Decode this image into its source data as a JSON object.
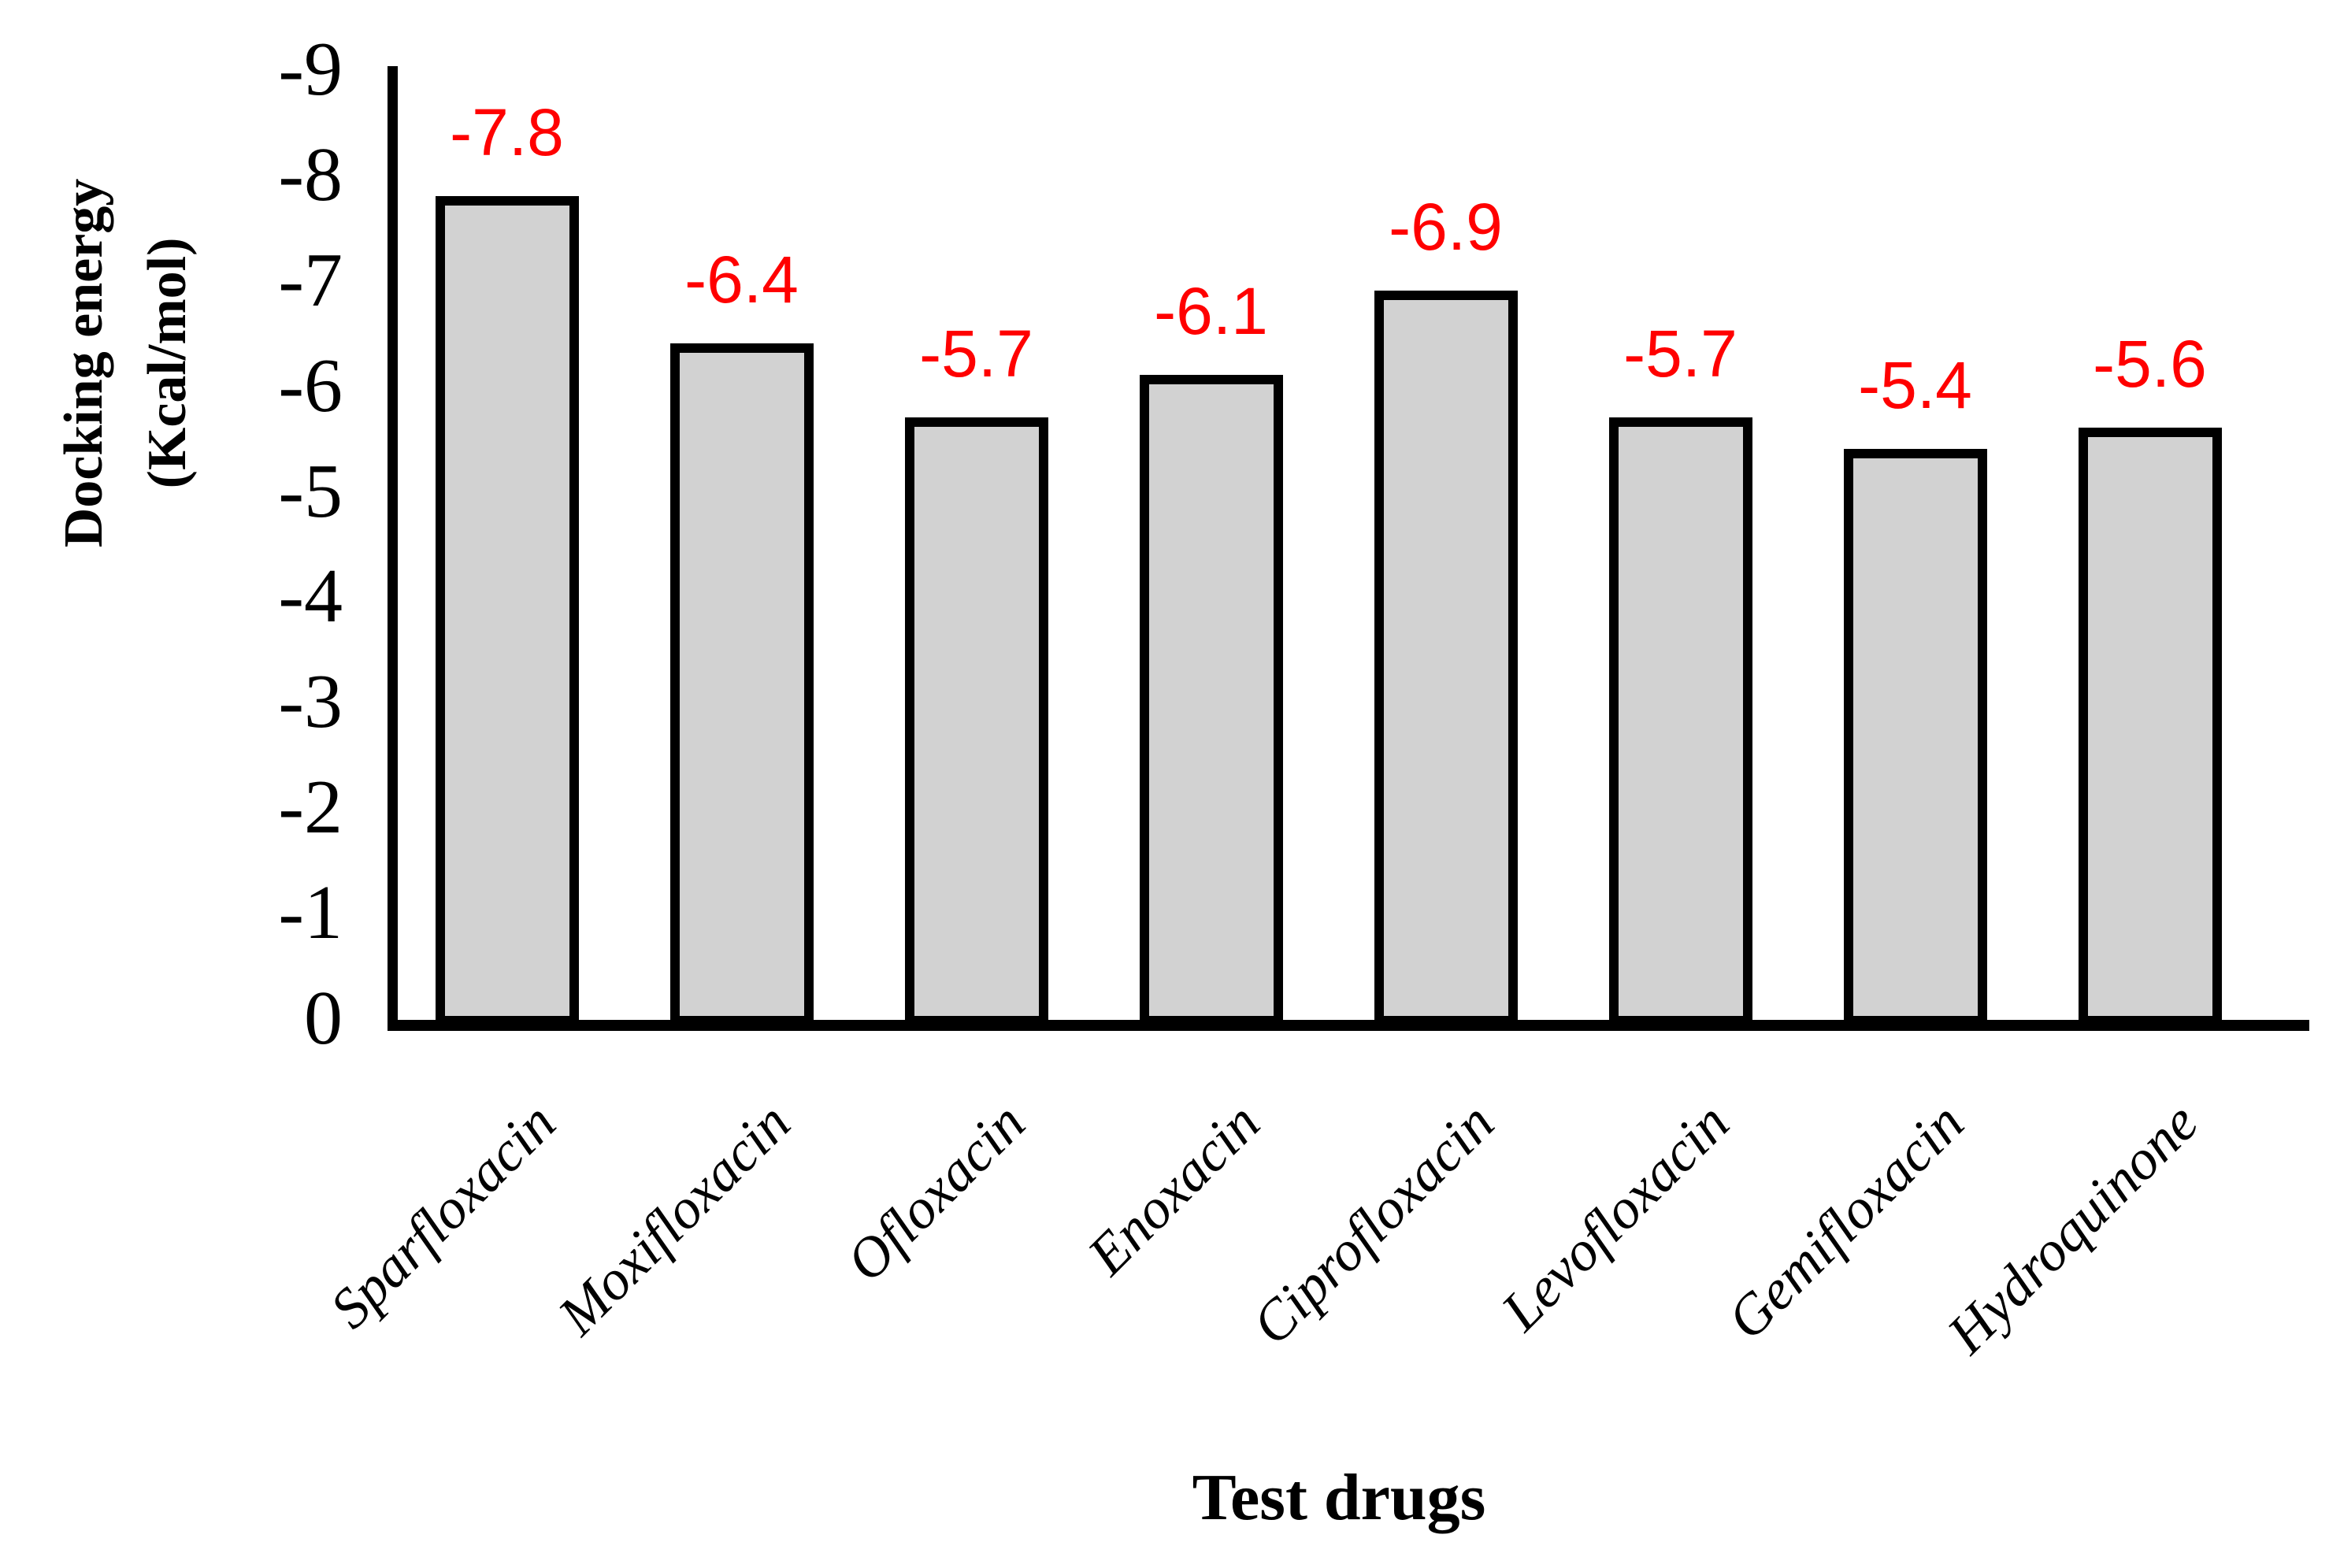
{
  "chart_data": {
    "type": "bar",
    "title": "",
    "categories": [
      "Sparfloxacin",
      "Moxifloxacin",
      "Ofloxacin",
      "Enoxacin",
      "Ciprofloxacin",
      "Levofloxacin",
      "Gemifloxacin",
      "Hydroquinone"
    ],
    "values": [
      -7.8,
      -6.4,
      -5.7,
      -6.1,
      -6.9,
      -5.7,
      -5.4,
      -5.6
    ],
    "data_labels": [
      "-7.8",
      "-6.4",
      "-5.7",
      "-6.1",
      "-6.9",
      "-5.7",
      "-5.4",
      "-5.6"
    ],
    "xlabel": "Test drugs",
    "ylabel": "Docking energy (Kcal/mol)",
    "ylabel_lines": [
      "Docking energy",
      "(Kcal/mol)"
    ],
    "y_tick_labels": [
      "0",
      "-1",
      "-2",
      "-3",
      "-4",
      "-5",
      "-6",
      "-7",
      "-8",
      "-9"
    ],
    "y_tick_values": [
      0,
      -1,
      -2,
      -3,
      -4,
      -5,
      -6,
      -7,
      -8,
      -9
    ],
    "ylim": [
      0,
      -9
    ],
    "axis_inverted": true,
    "grid": false,
    "legend": false,
    "data_labels_position": "above-bars",
    "category_label_rotation_deg": 45,
    "colors": {
      "bar_fill": "#d2d2d2",
      "bar_border": "#000000",
      "data_label": "#ff0000",
      "axis": "#000000",
      "text": "#000000",
      "background": "#ffffff"
    }
  }
}
